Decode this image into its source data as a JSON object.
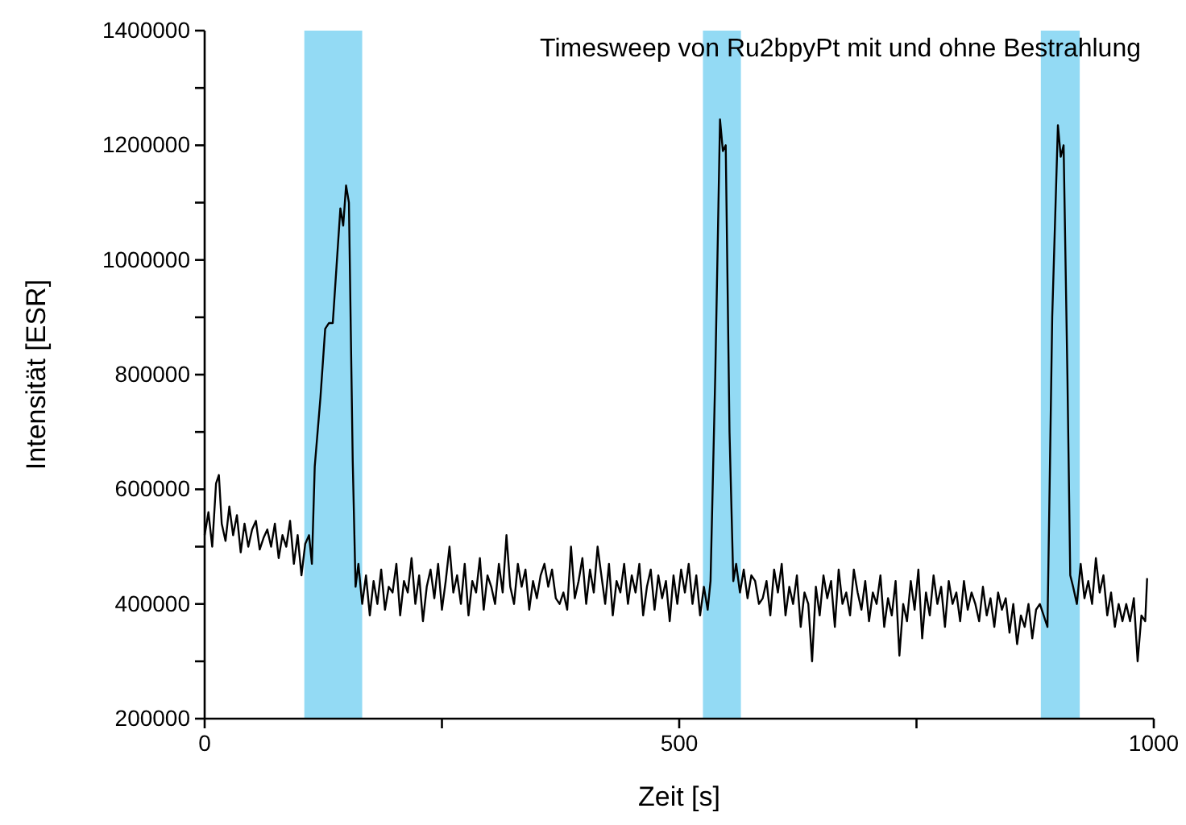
{
  "chart_data": {
    "type": "line",
    "title": "Timesweep von Ru2bpyPt mit und ohne Bestrahlung",
    "xlabel": "Zeit [s]",
    "ylabel": "Intensität [ESR]",
    "xlim": [
      0,
      1000
    ],
    "xticks": [
      0,
      {
        "value": 250,
        "label": null
      },
      500,
      {
        "value": 750,
        "label": null
      },
      1000
    ],
    "ylim": [
      200000,
      1400000
    ],
    "yticks": [
      200000,
      {
        "value": 300000,
        "label": null
      },
      400000,
      {
        "value": 500000,
        "label": null
      },
      600000,
      {
        "value": 700000,
        "label": null
      },
      800000,
      {
        "value": 900000,
        "label": null
      },
      1000000,
      {
        "value": 1100000,
        "label": null
      },
      1200000,
      {
        "value": 1300000,
        "label": null
      },
      1400000
    ],
    "grid": false,
    "marker": "none",
    "line_style": "solid",
    "bands": [
      {
        "axis": "x",
        "from": 105,
        "to": 166,
        "label": null,
        "color": "#80d4f2"
      },
      {
        "axis": "x",
        "from": 525,
        "to": 565,
        "label": null,
        "color": "#80d4f2"
      },
      {
        "axis": "x",
        "from": 881,
        "to": 922,
        "label": null,
        "color": "#80d4f2"
      }
    ],
    "series": [
      {
        "color": "#000000",
        "x": [
          0,
          4,
          8,
          12,
          15,
          18,
          22,
          26,
          30,
          34,
          38,
          42,
          46,
          50,
          54,
          58,
          62,
          66,
          70,
          74,
          78,
          82,
          86,
          90,
          94,
          98,
          102,
          106,
          110,
          113,
          116,
          122,
          127,
          131,
          135,
          139,
          143,
          146,
          149,
          152,
          156,
          159,
          162,
          166,
          170,
          174,
          178,
          182,
          186,
          190,
          194,
          198,
          202,
          206,
          210,
          214,
          218,
          222,
          226,
          230,
          234,
          238,
          242,
          246,
          250,
          254,
          258,
          262,
          266,
          270,
          274,
          278,
          282,
          286,
          290,
          294,
          298,
          302,
          306,
          310,
          314,
          318,
          322,
          326,
          330,
          334,
          338,
          342,
          346,
          350,
          354,
          358,
          362,
          366,
          370,
          374,
          378,
          382,
          386,
          390,
          394,
          398,
          402,
          406,
          410,
          414,
          418,
          422,
          426,
          430,
          434,
          438,
          442,
          446,
          450,
          454,
          458,
          462,
          466,
          470,
          474,
          478,
          482,
          486,
          490,
          494,
          498,
          502,
          506,
          510,
          514,
          518,
          522,
          526,
          530,
          533,
          538,
          543,
          546,
          549,
          553,
          557,
          560,
          564,
          568,
          572,
          576,
          580,
          584,
          588,
          592,
          596,
          600,
          604,
          608,
          612,
          616,
          620,
          624,
          628,
          632,
          636,
          640,
          644,
          648,
          652,
          656,
          660,
          664,
          668,
          672,
          676,
          680,
          684,
          688,
          692,
          696,
          700,
          704,
          708,
          712,
          716,
          720,
          724,
          728,
          732,
          736,
          740,
          744,
          748,
          752,
          756,
          760,
          764,
          768,
          772,
          776,
          780,
          784,
          788,
          792,
          796,
          800,
          804,
          808,
          812,
          816,
          820,
          824,
          828,
          832,
          836,
          840,
          844,
          848,
          852,
          856,
          860,
          864,
          868,
          872,
          876,
          880,
          884,
          888,
          893,
          899,
          902,
          905,
          909,
          912,
          915,
          919,
          923,
          927,
          931,
          935,
          939,
          943,
          947,
          951,
          955,
          959,
          963,
          967,
          971,
          975,
          979,
          983,
          987,
          991,
          993
        ],
        "values": [
          520000,
          560000,
          500000,
          610000,
          625000,
          540000,
          510000,
          570000,
          520000,
          555000,
          490000,
          540000,
          500000,
          530000,
          545000,
          495000,
          515000,
          530000,
          500000,
          540000,
          480000,
          520000,
          500000,
          545000,
          470000,
          520000,
          450000,
          505000,
          520000,
          470000,
          640000,
          760000,
          880000,
          890000,
          890000,
          990000,
          1090000,
          1060000,
          1130000,
          1100000,
          650000,
          430000,
          470000,
          400000,
          450000,
          380000,
          440000,
          400000,
          460000,
          390000,
          430000,
          420000,
          470000,
          380000,
          440000,
          420000,
          480000,
          400000,
          450000,
          370000,
          430000,
          460000,
          410000,
          470000,
          390000,
          440000,
          500000,
          420000,
          450000,
          400000,
          470000,
          380000,
          440000,
          420000,
          480000,
          390000,
          450000,
          430000,
          400000,
          470000,
          420000,
          520000,
          430000,
          400000,
          470000,
          430000,
          460000,
          390000,
          440000,
          410000,
          450000,
          470000,
          430000,
          460000,
          410000,
          400000,
          420000,
          390000,
          500000,
          410000,
          440000,
          480000,
          400000,
          460000,
          420000,
          500000,
          450000,
          400000,
          470000,
          380000,
          440000,
          420000,
          470000,
          400000,
          450000,
          420000,
          470000,
          380000,
          430000,
          460000,
          390000,
          450000,
          410000,
          440000,
          370000,
          450000,
          400000,
          460000,
          420000,
          470000,
          400000,
          450000,
          380000,
          430000,
          390000,
          440000,
          800000,
          1245000,
          1190000,
          1200000,
          700000,
          440000,
          470000,
          420000,
          460000,
          410000,
          450000,
          440000,
          400000,
          410000,
          440000,
          380000,
          460000,
          420000,
          470000,
          380000,
          430000,
          400000,
          450000,
          360000,
          420000,
          400000,
          300000,
          430000,
          380000,
          450000,
          410000,
          440000,
          360000,
          460000,
          400000,
          420000,
          380000,
          460000,
          420000,
          390000,
          440000,
          370000,
          420000,
          400000,
          450000,
          360000,
          410000,
          380000,
          440000,
          310000,
          400000,
          370000,
          440000,
          390000,
          460000,
          340000,
          420000,
          380000,
          450000,
          400000,
          430000,
          360000,
          440000,
          400000,
          420000,
          370000,
          440000,
          390000,
          420000,
          400000,
          370000,
          430000,
          380000,
          410000,
          360000,
          420000,
          390000,
          410000,
          350000,
          400000,
          330000,
          380000,
          360000,
          400000,
          340000,
          390000,
          400000,
          380000,
          360000,
          900000,
          1235000,
          1180000,
          1200000,
          800000,
          450000,
          430000,
          400000,
          470000,
          410000,
          440000,
          400000,
          480000,
          420000,
          450000,
          380000,
          420000,
          360000,
          400000,
          370000,
          400000,
          370000,
          410000,
          300000,
          380000,
          370000,
          445000
        ]
      }
    ]
  }
}
